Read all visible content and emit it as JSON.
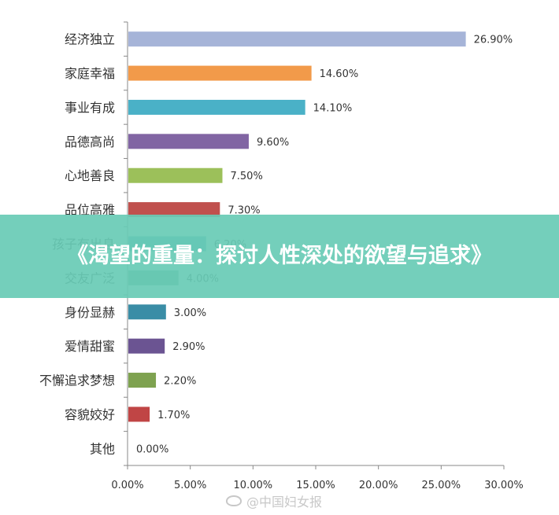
{
  "chart_data": {
    "type": "bar",
    "orientation": "horizontal",
    "categories": [
      "经济独立",
      "家庭幸福",
      "事业有成",
      "品德高尚",
      "心地善良",
      "品位高雅",
      "孩子有出息",
      "交友广泛",
      "身份显赫",
      "爱情甜蜜",
      "不懈追求梦想",
      "容貌姣好",
      "其他"
    ],
    "values": [
      26.9,
      14.6,
      14.1,
      9.6,
      7.5,
      7.3,
      6.2,
      4.0,
      3.0,
      2.9,
      2.2,
      1.7,
      0.0
    ],
    "value_labels": [
      "26.90%",
      "14.60%",
      "14.10%",
      "9.60%",
      "7.50%",
      "7.30%",
      "6.20%",
      "4.00%",
      "3.00%",
      "2.90%",
      "2.20%",
      "1.70%",
      "0.00%"
    ],
    "colors": [
      "#a6b4d8",
      "#f29a4a",
      "#4ab1c7",
      "#8165a3",
      "#9cc05a",
      "#c0504d",
      "#4aa4bd",
      "#6daa8a",
      "#3a8da6",
      "#6b5492",
      "#7ea250",
      "#c04545",
      "#aaaaaa"
    ],
    "xlim": [
      0,
      30
    ],
    "xticks": [
      "0.00%",
      "5.00%",
      "10.00%",
      "15.00%",
      "20.00%",
      "25.00%",
      "30.00%"
    ],
    "grid": false
  },
  "banner": {
    "title": "《渴望的重量：探讨人性深处的欲望与追求》",
    "color": "#68cbb5"
  },
  "watermark": {
    "text": "@中国妇女报",
    "icon": "weibo-icon"
  }
}
